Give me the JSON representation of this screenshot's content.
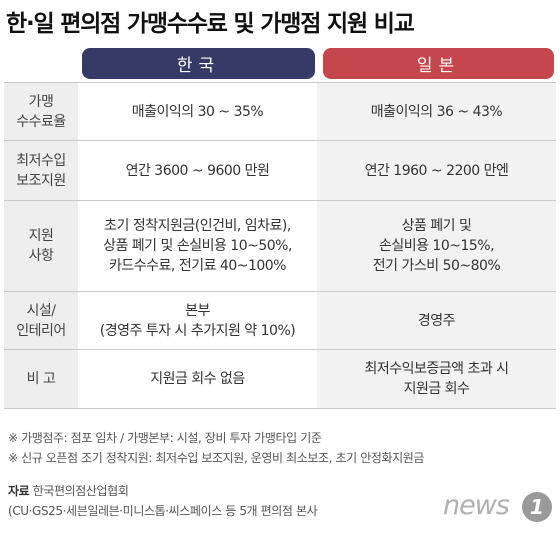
{
  "title": "한·일 편의점 가맹수수료 및 가맹점 지원 비교",
  "headers": {
    "korea": "한국",
    "japan": "일본"
  },
  "rows": [
    {
      "label": [
        "가맹",
        "수수료율"
      ],
      "korea": [
        "매출이익의 30 ~ 35%"
      ],
      "japan": [
        "매출이익의 36 ~ 43%"
      ]
    },
    {
      "label": [
        "최저수입",
        "보조지원"
      ],
      "korea": [
        "연간 3600 ~ 9600 만원"
      ],
      "japan": [
        "연간 1960 ~ 2200 만엔"
      ]
    },
    {
      "label": [
        "지원",
        "사항"
      ],
      "korea": [
        "초기 정착지원금(인건비, 임차료),",
        "상품 폐기 및 손실비용 10~50%,",
        "카드수수료, 전기료 40~100%"
      ],
      "japan": [
        "상품 폐기 및",
        "손실비용 10~15%,",
        "전기 가스비 50~80%"
      ]
    },
    {
      "label": [
        "시설/",
        "인테리어"
      ],
      "korea": [
        "본부",
        "(경영주 투자 시 추가지원 약 10%)"
      ],
      "japan": [
        "경영주"
      ]
    },
    {
      "label": [
        "비 고"
      ],
      "korea": [
        "지원금 회수 없음"
      ],
      "japan": [
        "최저수익보증금액 초과 시",
        "지원금 회수"
      ]
    }
  ],
  "notes": [
    "※ 가맹점주: 점포 임차 / 가맹본부: 시설, 장비 투자 가맹타입 기준",
    "※ 신규 오픈점 조기 정착지원: 최저수입 보조지원, 운영비 최소보조, 초기 안정화지원금"
  ],
  "source": {
    "label": "자료",
    "org": "한국편의점산업협회",
    "detail": "(CU·GS25·세븐일레븐·미니스톱·씨스페이스 등 5개 편의점 본사"
  },
  "logo": {
    "text": "news",
    "badge": "1"
  }
}
